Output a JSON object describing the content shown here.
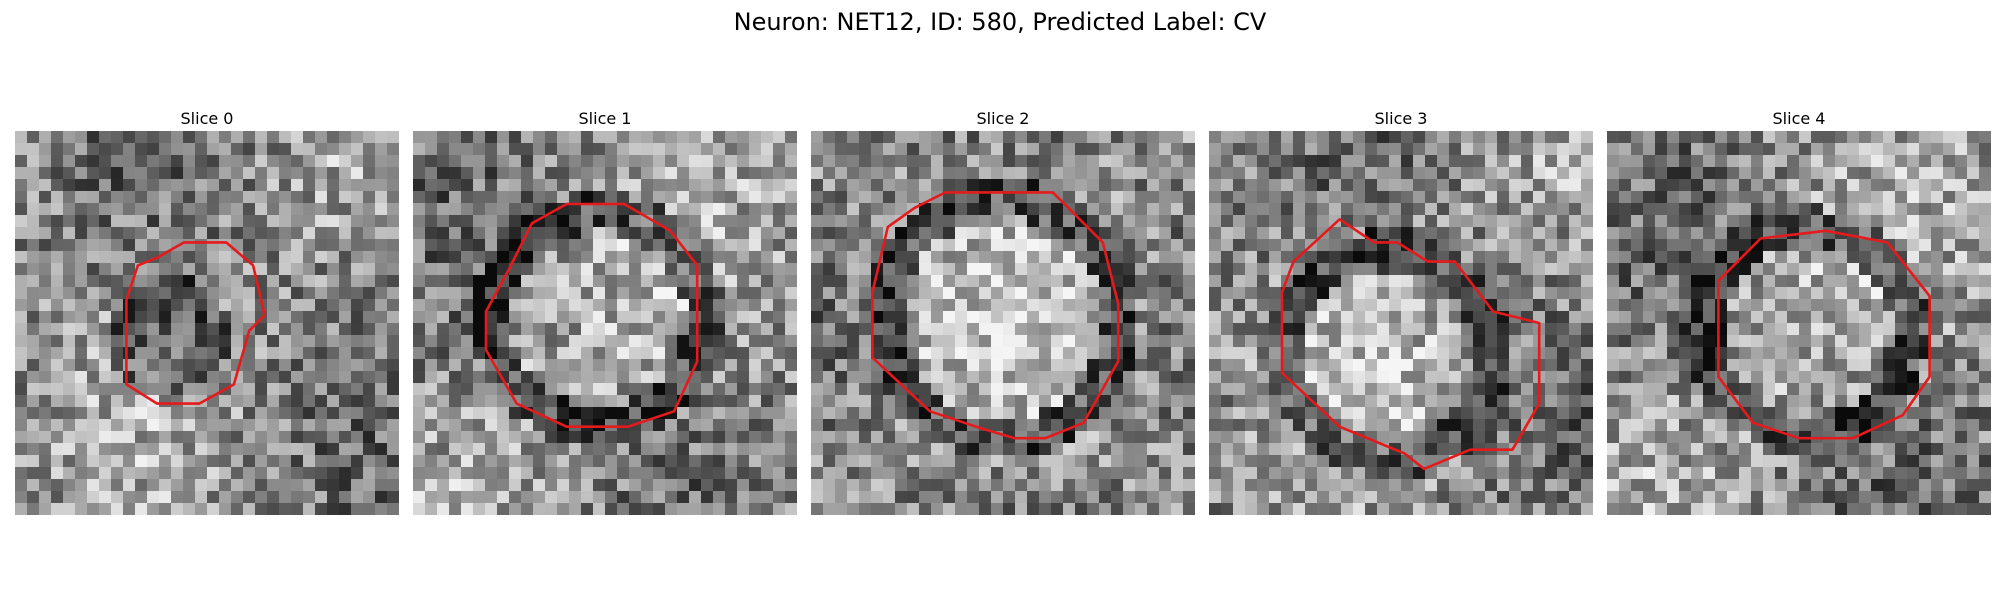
{
  "figure": {
    "title": "Neuron: NET12, ID: 580, Predicted Label: CV",
    "contour_color": "#e41a1c",
    "colormap": "grayscale"
  },
  "panels": [
    {
      "title": "Slice 0",
      "image": "noisy grayscale EM patch with dark ring structure",
      "contour": "small irregular circle"
    },
    {
      "title": "Slice 1",
      "image": "noisy grayscale EM patch with bright center",
      "contour": "medium rounded polygon"
    },
    {
      "title": "Slice 2",
      "image": "noisy grayscale EM patch with bright center and dark rim",
      "contour": "large rounded polygon"
    },
    {
      "title": "Slice 3",
      "image": "noisy grayscale EM patch",
      "contour": "irregular polygon"
    },
    {
      "title": "Slice 4",
      "image": "noisy grayscale EM patch with dark surround",
      "contour": "octagon"
    }
  ]
}
